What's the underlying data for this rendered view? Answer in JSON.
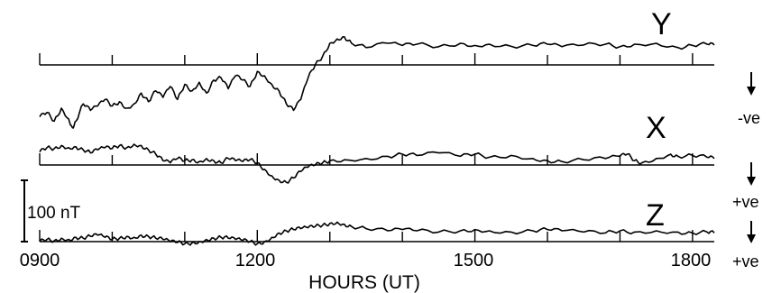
{
  "chart_data": {
    "type": "line",
    "xlabel": "HOURS (UT)",
    "xlim": [
      900,
      1830
    ],
    "x_tick_labels": [
      "0900",
      "1200",
      "1500",
      "1800"
    ],
    "minor_tick_hours": [
      1000,
      1100,
      1300,
      1400,
      1600,
      1700
    ],
    "scale_bar_label": "100 nT",
    "scale_bar_nT": 100,
    "series": [
      {
        "name": "Y",
        "direction_label": "-ve",
        "x": [
          900,
          910,
          920,
          930,
          940,
          945,
          950,
          960,
          970,
          980,
          990,
          1000,
          1010,
          1020,
          1030,
          1040,
          1050,
          1060,
          1070,
          1080,
          1090,
          1100,
          1110,
          1120,
          1130,
          1140,
          1150,
          1160,
          1170,
          1180,
          1190,
          1200,
          1210,
          1220,
          1230,
          1240,
          1250,
          1260,
          1270,
          1280,
          1290,
          1300,
          1310,
          1320,
          1330,
          1350,
          1380,
          1400,
          1420,
          1450,
          1480,
          1500,
          1520,
          1550,
          1580,
          1600,
          1620,
          1650,
          1680,
          1700,
          1720,
          1750,
          1780,
          1800,
          1820,
          1830
        ],
        "values": [
          -50,
          -40,
          -60,
          -30,
          -55,
          -75,
          -60,
          -20,
          -35,
          -25,
          -10,
          -25,
          -15,
          -30,
          -20,
          5,
          -15,
          10,
          -5,
          20,
          -10,
          25,
          10,
          30,
          5,
          35,
          40,
          15,
          45,
          35,
          20,
          55,
          45,
          25,
          10,
          -20,
          -35,
          -10,
          40,
          70,
          90,
          120,
          130,
          135,
          120,
          110,
          120,
          115,
          118,
          112,
          120,
          115,
          118,
          113,
          115,
          118,
          112,
          116,
          118,
          112,
          118,
          120,
          110,
          115,
          118,
          116
        ]
      },
      {
        "name": "X",
        "direction_label": "+ve",
        "x": [
          900,
          910,
          920,
          930,
          940,
          950,
          960,
          970,
          980,
          990,
          1000,
          1010,
          1020,
          1030,
          1040,
          1050,
          1060,
          1070,
          1080,
          1090,
          1100,
          1110,
          1120,
          1130,
          1140,
          1150,
          1160,
          1170,
          1180,
          1190,
          1200,
          1210,
          1220,
          1230,
          1240,
          1250,
          1260,
          1270,
          1280,
          1290,
          1300,
          1320,
          1350,
          1380,
          1400,
          1420,
          1450,
          1480,
          1500,
          1520,
          1550,
          1580,
          1600,
          1620,
          1650,
          1680,
          1700,
          1710,
          1720,
          1730,
          1750,
          1770,
          1780,
          1800,
          1820,
          1830
        ],
        "values": [
          30,
          40,
          38,
          45,
          40,
          42,
          35,
          28,
          35,
          40,
          38,
          45,
          40,
          48,
          45,
          35,
          25,
          10,
          5,
          15,
          10,
          12,
          8,
          15,
          10,
          5,
          15,
          10,
          8,
          12,
          5,
          -10,
          -25,
          -35,
          -40,
          -30,
          -15,
          -5,
          0,
          5,
          10,
          12,
          15,
          20,
          25,
          22,
          28,
          20,
          25,
          18,
          22,
          15,
          10,
          8,
          12,
          15,
          20,
          25,
          10,
          5,
          15,
          25,
          20,
          22,
          18,
          15
        ]
      },
      {
        "name": "Z",
        "direction_label": "+ve",
        "x": [
          900,
          910,
          920,
          930,
          940,
          950,
          960,
          970,
          980,
          990,
          1000,
          1010,
          1020,
          1030,
          1040,
          1050,
          1060,
          1070,
          1080,
          1090,
          1100,
          1110,
          1120,
          1130,
          1140,
          1150,
          1160,
          1170,
          1180,
          1190,
          1200,
          1210,
          1220,
          1230,
          1240,
          1250,
          1260,
          1270,
          1280,
          1290,
          1300,
          1310,
          1320,
          1330,
          1350,
          1380,
          1400,
          1420,
          1450,
          1480,
          1500,
          1520,
          1550,
          1580,
          1600,
          1620,
          1650,
          1680,
          1700,
          1720,
          1750,
          1780,
          1800,
          1820,
          1830
        ],
        "values": [
          0,
          5,
          2,
          8,
          5,
          10,
          8,
          12,
          15,
          10,
          5,
          8,
          12,
          10,
          15,
          12,
          8,
          5,
          0,
          -2,
          -5,
          -3,
          0,
          5,
          8,
          10,
          8,
          5,
          3,
          0,
          -5,
          0,
          10,
          20,
          25,
          28,
          30,
          32,
          35,
          38,
          42,
          45,
          40,
          35,
          30,
          25,
          28,
          25,
          22,
          25,
          28,
          25,
          22,
          25,
          28,
          25,
          22,
          20,
          25,
          22,
          25,
          22,
          20,
          22,
          20
        ]
      }
    ]
  }
}
